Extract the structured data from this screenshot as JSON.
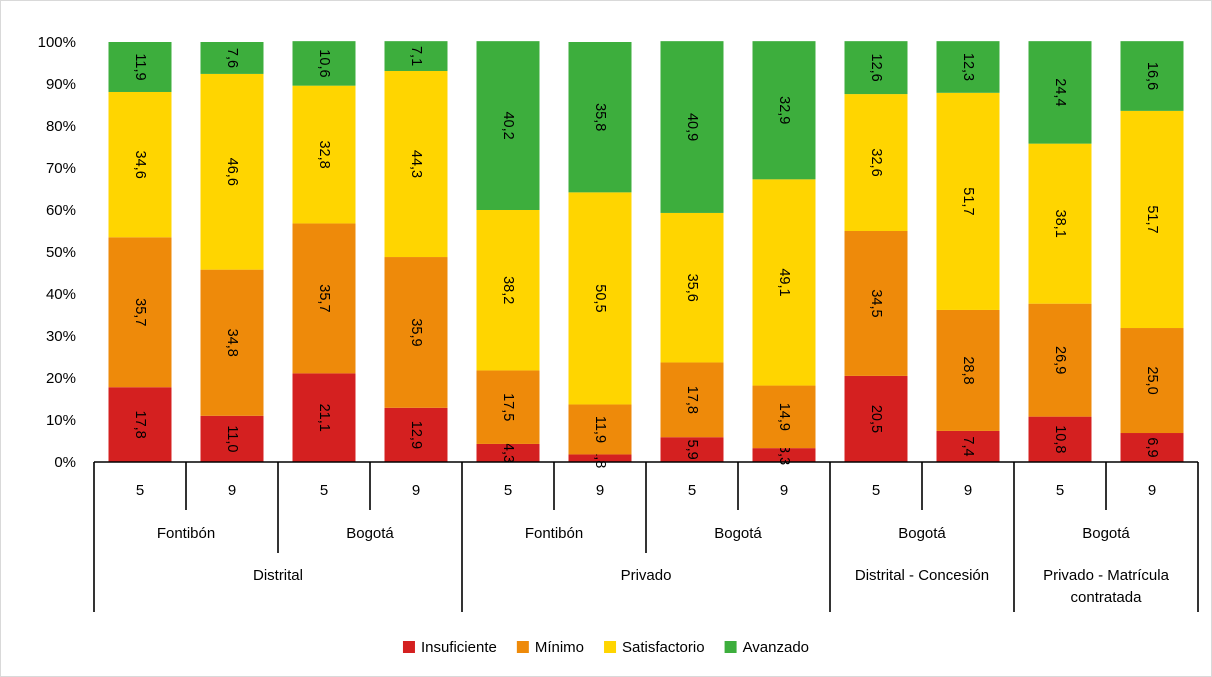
{
  "chart_data": {
    "type": "bar",
    "stacked": true,
    "percent_stacked": true,
    "title": "",
    "xlabel": "",
    "ylabel": "",
    "ylim": [
      0,
      100
    ],
    "y_ticks": [
      "0%",
      "10%",
      "20%",
      "30%",
      "40%",
      "50%",
      "60%",
      "70%",
      "80%",
      "90%",
      "100%"
    ],
    "grid": false,
    "legend_position": "bottom",
    "categories": [
      "5",
      "9",
      "5",
      "9",
      "5",
      "9",
      "5",
      "9",
      "5",
      "9",
      "5",
      "9"
    ],
    "group_level_1": [
      {
        "label": "Fontibón",
        "span": 2
      },
      {
        "label": "Bogotá",
        "span": 2
      },
      {
        "label": "Fontibón",
        "span": 2
      },
      {
        "label": "Bogotá",
        "span": 2
      },
      {
        "label": "Bogotá",
        "span": 2
      },
      {
        "label": "Bogotá",
        "span": 2
      }
    ],
    "group_level_2": [
      {
        "label": "Distrital",
        "span": 4
      },
      {
        "label": "Privado",
        "span": 4
      },
      {
        "label": "Distrital - Concesión",
        "span": 2
      },
      {
        "label": "Privado - Matrícula contratada",
        "span": 2
      }
    ],
    "series": [
      {
        "name": "Insuficiente",
        "color": "#D42020",
        "values": [
          17.8,
          11.0,
          21.1,
          12.9,
          4.3,
          1.8,
          5.9,
          3.3,
          20.5,
          7.4,
          10.8,
          6.9
        ]
      },
      {
        "name": "Mínimo",
        "color": "#EE8A0A",
        "values": [
          35.7,
          34.8,
          35.7,
          35.9,
          17.5,
          11.9,
          17.8,
          14.9,
          34.5,
          28.8,
          26.9,
          25.0
        ]
      },
      {
        "name": "Satisfactorio",
        "color": "#FFD500",
        "values": [
          34.6,
          46.6,
          32.8,
          44.3,
          38.2,
          50.5,
          35.6,
          49.1,
          32.6,
          51.7,
          38.1,
          51.7
        ]
      },
      {
        "name": "Avanzado",
        "color": "#3DAE3D",
        "values": [
          11.9,
          7.6,
          10.6,
          7.1,
          40.2,
          35.8,
          40.9,
          32.9,
          12.6,
          12.3,
          24.4,
          16.6
        ]
      }
    ],
    "data_labels": [
      [
        "17,8",
        "11,0",
        "21,1",
        "12,9",
        "4,3",
        "1,8",
        "5,9",
        "3,3",
        "20,5",
        "7,4",
        "10,8",
        "6,9"
      ],
      [
        "35,7",
        "34,8",
        "35,7",
        "35,9",
        "17,5",
        "11,9",
        "17,8",
        "14,9",
        "34,5",
        "28,8",
        "26,9",
        "25,0"
      ],
      [
        "34,6",
        "46,6",
        "32,8",
        "44,3",
        "38,2",
        "50,5",
        "35,6",
        "49,1",
        "32,6",
        "51,7",
        "38,1",
        "51,7"
      ],
      [
        "11,9",
        "7,6",
        "10,6",
        "7,1",
        "40,2",
        "35,8",
        "40,9",
        "32,9",
        "12,6",
        "12,3",
        "24,4",
        "16,6"
      ]
    ]
  }
}
